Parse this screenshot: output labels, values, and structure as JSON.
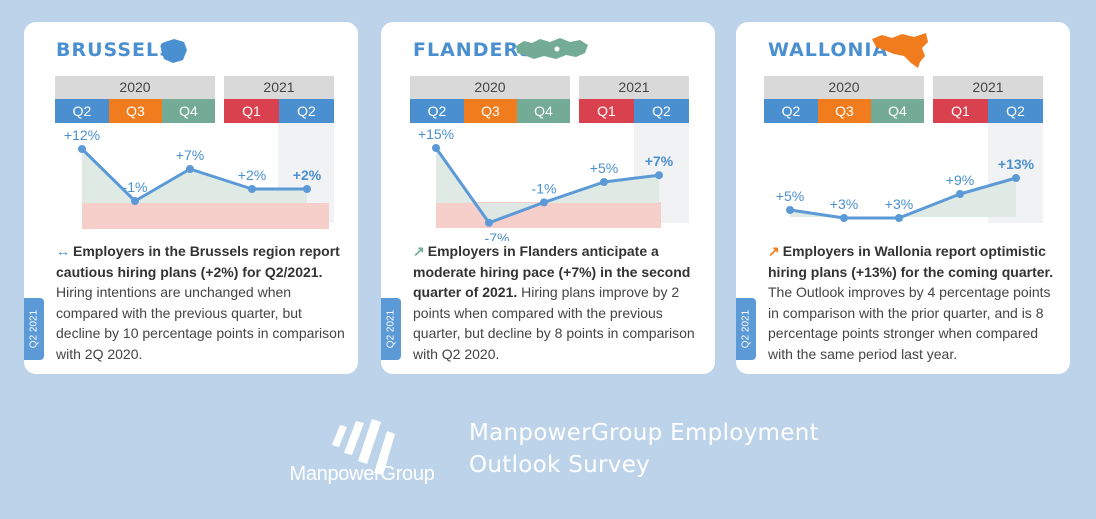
{
  "panels": [
    {
      "region": "BRUSSELS",
      "shape_color": "#4a8fd0",
      "years": [
        "2020",
        "2021"
      ],
      "quarters": [
        "Q2",
        "Q3",
        "Q4",
        "Q1",
        "Q2"
      ],
      "arrow": "↔",
      "arrow_color": "#4a8fd0",
      "desc_bold": "Employers in the Brussels region report cautious hiring plans (+2%) for Q2/2021.",
      "desc_rest": " Hiring intentions are unchanged when compared with the previous quarter, but decline by 10 percentage points in comparison with 2Q 2020.",
      "tab": "Q2 2021"
    },
    {
      "region": "FLANDERS",
      "shape_color": "#74ab97",
      "years": [
        "2020",
        "2021"
      ],
      "quarters": [
        "Q2",
        "Q3",
        "Q4",
        "Q1",
        "Q2"
      ],
      "arrow": "↗",
      "arrow_color": "#74ab97",
      "desc_bold": "Employers in Flanders anticipate a moderate hiring pace (+7%) in the second quarter of 2021.",
      "desc_rest": " Hiring plans improve by 2 points when compared with the previous quarter, but decline by 8 points in comparison with Q2 2020.",
      "tab": "Q2 2021"
    },
    {
      "region": "WALLONIA",
      "shape_color": "#f07c1e",
      "years": [
        "2020",
        "2021"
      ],
      "quarters": [
        "Q2",
        "Q3",
        "Q4",
        "Q1",
        "Q2"
      ],
      "arrow": "↗",
      "arrow_color": "#f07c1e",
      "desc_bold": "Employers in Wallonia report optimistic hiring plans (+13%) for the coming quarter.",
      "desc_rest": " The Outlook improves by 4 percentage points in comparison with the prior quarter, and is 8 percentage points stronger when compared with the same period last year.",
      "tab": "Q2 2021"
    }
  ],
  "chart_data": [
    {
      "type": "line",
      "categories": [
        "Q2 2020",
        "Q3 2020",
        "Q4 2020",
        "Q1 2021",
        "Q2 2021"
      ],
      "values": [
        12,
        -1,
        7,
        2,
        2
      ],
      "labels": [
        "+12%",
        "-1%",
        "+7%",
        "+2%",
        "+2%"
      ]
    },
    {
      "type": "line",
      "categories": [
        "Q2 2020",
        "Q3 2020",
        "Q4 2020",
        "Q1 2021",
        "Q2 2021"
      ],
      "values": [
        15,
        -7,
        -1,
        5,
        7
      ],
      "labels": [
        "+15%",
        "-7%",
        "-1%",
        "+5%",
        "+7%"
      ]
    },
    {
      "type": "line",
      "categories": [
        "Q2 2020",
        "Q3 2020",
        "Q4 2020",
        "Q1 2021",
        "Q2 2021"
      ],
      "values": [
        5,
        3,
        3,
        9,
        13
      ],
      "labels": [
        "+5%",
        "+3%",
        "+3%",
        "+9%",
        "+13%"
      ]
    }
  ],
  "footer": {
    "brand": "ManpowerGroup",
    "survey_line1": "ManpowerGroup Employment",
    "survey_line2": "Outlook Survey"
  }
}
